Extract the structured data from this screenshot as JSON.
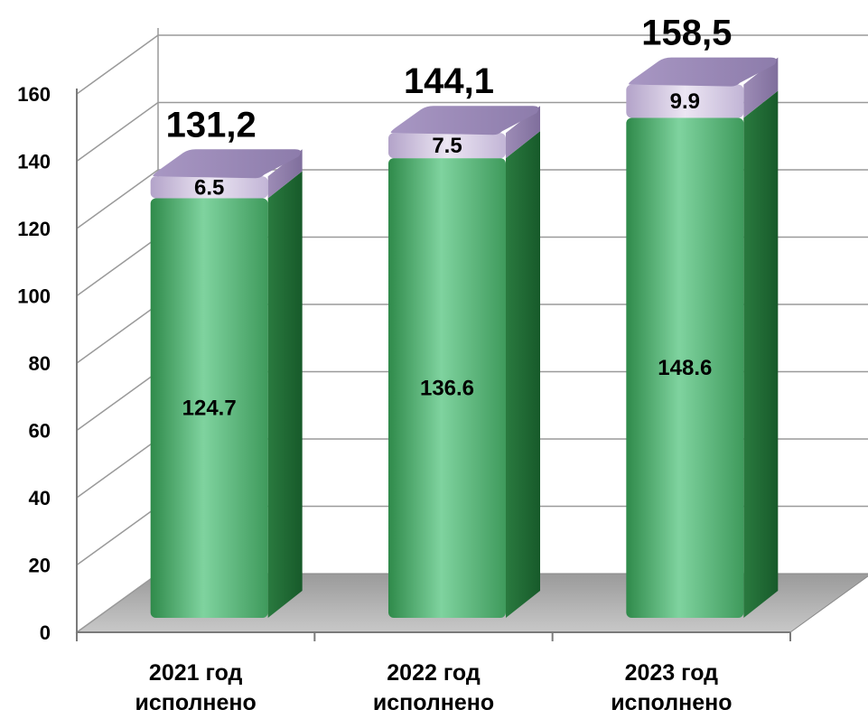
{
  "chart_data": {
    "type": "bar",
    "stacked": true,
    "three_d": true,
    "categories": [
      [
        "2021 год",
        "исполнено"
      ],
      [
        "2022 год",
        "исполнено"
      ],
      [
        "2023 год",
        "исполнено"
      ]
    ],
    "series": [
      {
        "values": [
          124.7,
          136.6,
          148.6
        ],
        "labels": [
          "124.7",
          "136.6",
          "148.6"
        ],
        "color": "#3f9a5c"
      },
      {
        "values": [
          6.5,
          7.5,
          9.9
        ],
        "labels": [
          "6.5",
          "7.5",
          "9.9"
        ],
        "color": "#c5b8d6"
      }
    ],
    "totals": [
      "131,2",
      "144,1",
      "158,5"
    ],
    "yticks": [
      0,
      20,
      40,
      60,
      80,
      100,
      120,
      140,
      160
    ],
    "ylim": [
      0,
      160
    ],
    "grid": true
  }
}
